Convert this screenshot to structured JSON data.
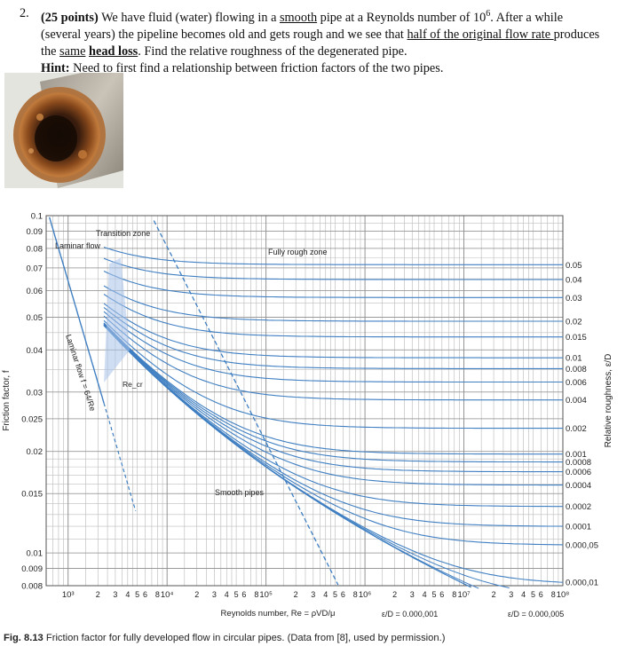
{
  "problem": {
    "number": "2.",
    "points": "(25 points)",
    "text_1": " We have fluid (water) flowing in a ",
    "smooth": "smooth",
    "text_2": " pipe at a Reynolds number of 10",
    "re_exp": "6",
    "text_3": ". After a while (several years) the pipeline becomes old and gets rough and we see that ",
    "half_flow": "half of the original flow rate ",
    "text_4": "produces the ",
    "same": "same",
    "head_loss": "head loss",
    "text_5": ". Find the relative roughness of the degenerated pipe.",
    "hint_label": "Hint:",
    "hint_text": " Need to first find a relationship between friction factors of the two pipes."
  },
  "photo": {
    "icon": "corroded-pipe-photo"
  },
  "chart_data": {
    "type": "line",
    "x_scale": "log",
    "y_scale": "log",
    "xlim": [
      600,
      100000000
    ],
    "ylim": [
      0.008,
      0.1
    ],
    "xlabel": "Reynolds number, Re = ρVD/μ",
    "ylabel": "Friction factor, f",
    "right_label": "Relative roughness, ε/D",
    "y_ticks": [
      "0.1",
      "0.09",
      "0.08",
      "0.07",
      "0.06",
      "0.05",
      "0.04",
      "0.03",
      "0.025",
      "0.02",
      "0.015",
      "0.01",
      "0.009",
      "0.008"
    ],
    "y_tick_values": [
      0.1,
      0.09,
      0.08,
      0.07,
      0.06,
      0.05,
      0.04,
      0.03,
      0.025,
      0.02,
      0.015,
      0.01,
      0.009,
      0.008
    ],
    "x_decades": [
      {
        "label": "10³",
        "value": 1000
      },
      {
        "label": "10⁴",
        "value": 10000
      },
      {
        "label": "10⁵",
        "value": 100000
      },
      {
        "label": "10⁶",
        "value": 1000000
      },
      {
        "label": "10⁷",
        "value": 10000000
      },
      {
        "label": "10⁸",
        "value": 100000000
      }
    ],
    "x_minor_digits": [
      "2",
      "3",
      "4",
      "5",
      "6",
      "8"
    ],
    "roughness_labels": [
      "0.05",
      "0.04",
      "0.03",
      "0.02",
      "0.015",
      "0.01",
      "0.008",
      "0.006",
      "0.004",
      "0.002",
      "0.001",
      "0.0008",
      "0.0006",
      "0.0004",
      "0.0002",
      "0.0001",
      "0.000,05",
      "0.000,01"
    ],
    "roughness_values": [
      0.05,
      0.04,
      0.03,
      0.02,
      0.015,
      0.01,
      0.008,
      0.006,
      0.004,
      0.002,
      0.001,
      0.0008,
      0.0006,
      0.0004,
      0.0002,
      0.0001,
      5e-05,
      1e-05
    ],
    "annotations": {
      "laminar": "Laminar flow",
      "transition": "Transition zone",
      "fully_rough": "Fully rough zone",
      "smooth_pipes": "Smooth pipes",
      "laminar_eq": "Laminar flow f = 64/Re",
      "re_cr": "Re_cr",
      "rel_rough_001": "ε/D = 0.000,001",
      "rel_rough_0005": "ε/D = 0.000,005"
    }
  },
  "caption": {
    "label": "Fig. 8.13",
    "text": " Friction factor for fully developed flow in circular pipes. (Data from [8], used by permission.)"
  }
}
